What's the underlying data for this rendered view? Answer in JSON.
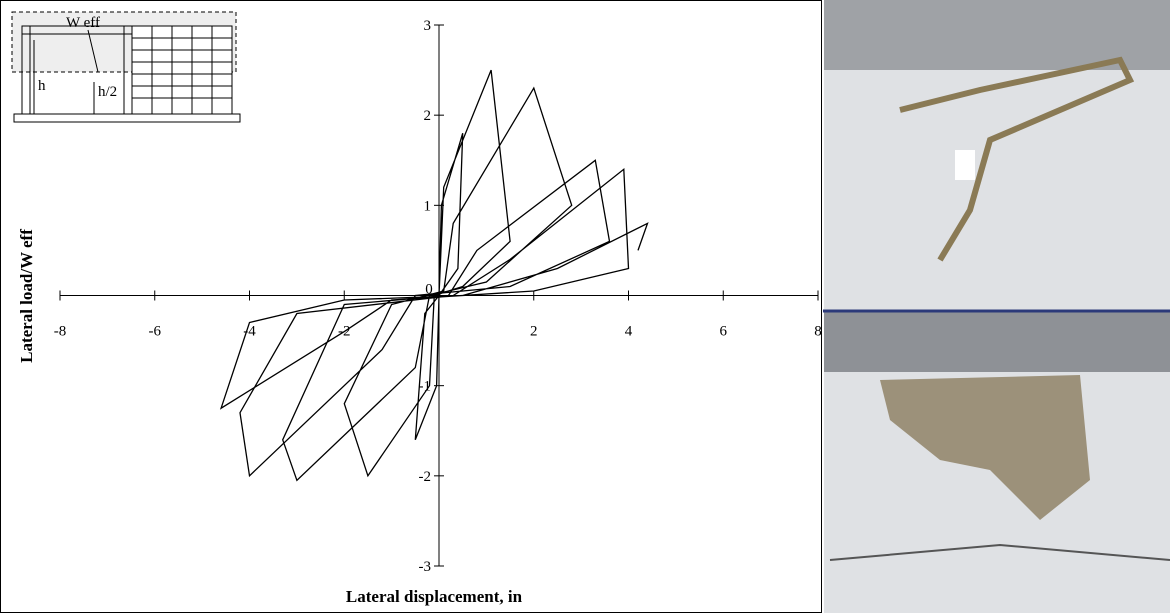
{
  "chart_data": {
    "type": "line",
    "x_label": "Lateral displacement, in",
    "y_label": "Lateral load/W eff",
    "inset_labels": {
      "width": "W eff",
      "height": "h",
      "half_height": "h/2"
    },
    "x": [
      0,
      0.05,
      0.5,
      0.4,
      0,
      -0.05,
      -0.5,
      -0.3,
      0,
      0.1,
      1.1,
      1.5,
      0.5,
      -0.1,
      -0.2,
      -1.5,
      -2.0,
      -1,
      0.1,
      0.3,
      2.0,
      2.8,
      1,
      -0.2,
      -0.5,
      -3,
      -3.3,
      -2,
      0.2,
      0.8,
      3.3,
      3.6,
      1.5,
      -0.5,
      -1.2,
      -4.0,
      -4.2,
      -3,
      0.3,
      1.5,
      3.9,
      4,
      2,
      -1,
      -2,
      -4.6,
      -4.0,
      -2,
      0.5,
      2.5,
      4.4,
      4.2
    ],
    "series": [
      {
        "color": "#000000",
        "values": [
          0,
          1.0,
          1.8,
          0.3,
          0,
          -1.0,
          -1.6,
          -0.2,
          0,
          1.2,
          2.5,
          0.6,
          0.1,
          0,
          -1,
          -2.0,
          -1.2,
          -0.1,
          0.05,
          0.8,
          2.3,
          1.0,
          0.15,
          0,
          -0.8,
          -2.05,
          -1.6,
          -0.1,
          0,
          0.5,
          1.5,
          0.6,
          0.1,
          0,
          -0.6,
          -2.0,
          -1.3,
          -0.2,
          0,
          0.4,
          1.4,
          0.3,
          0.05,
          -0.05,
          -0.4,
          -1.25,
          -0.3,
          -0.05,
          0,
          0.3,
          0.8,
          0.5
        ]
      }
    ],
    "xlim": [
      -8,
      8
    ],
    "xticks": [
      -8,
      -6,
      -4,
      -2,
      0,
      2,
      4,
      6,
      8
    ],
    "ylim": [
      -3,
      3
    ],
    "yticks": [
      -3,
      -2,
      -1,
      0,
      1,
      2,
      3
    ]
  }
}
